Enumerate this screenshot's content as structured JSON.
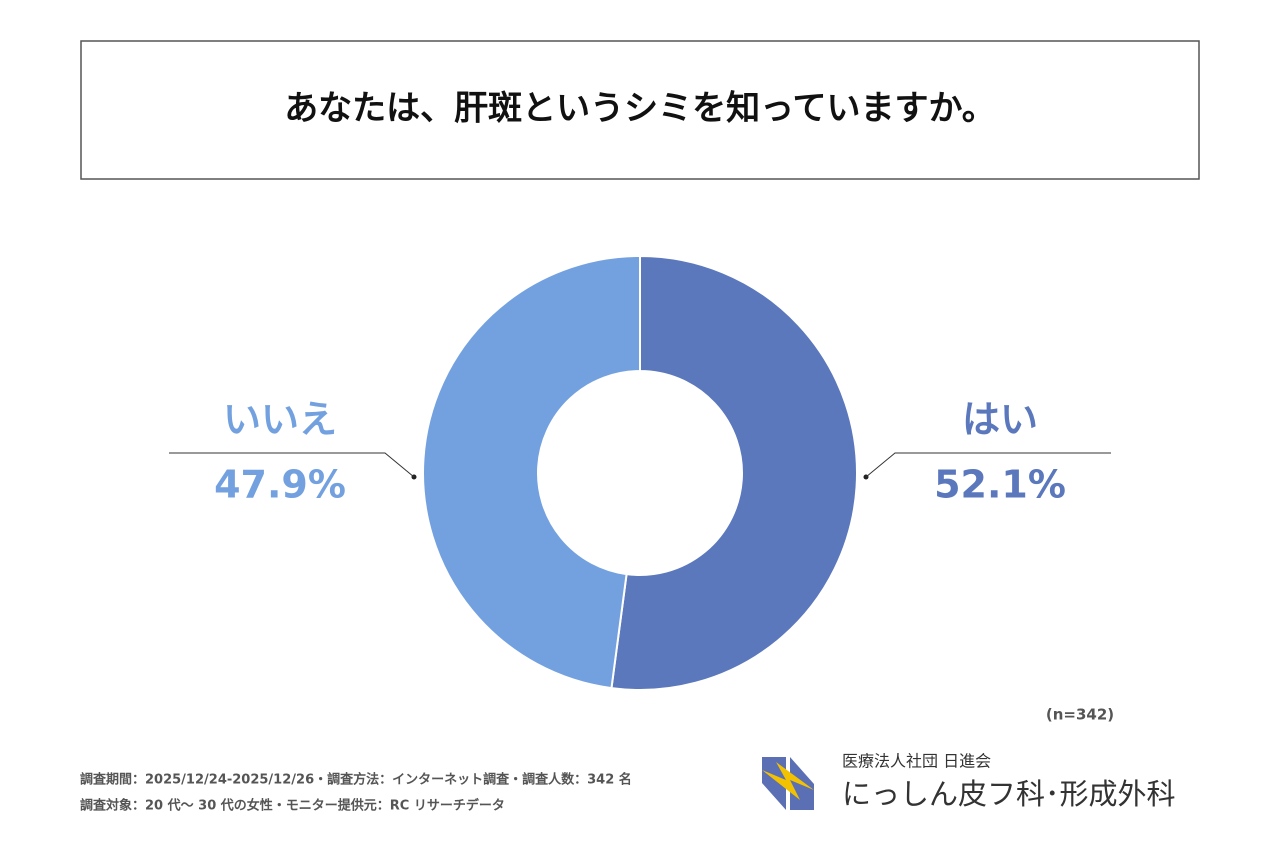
{
  "chart_data": {
    "type": "pie",
    "donut": true,
    "title": "あなたは、肝斑というシミを知っていますか。",
    "categories": [
      "はい",
      "いいえ"
    ],
    "values": [
      52.1,
      47.9
    ],
    "value_labels": [
      "52.1%",
      "47.9%"
    ],
    "colors": [
      "#5b78bd",
      "#73a1e0"
    ],
    "note": "(n=342)",
    "footnotes": [
      "調査期間：2025/12/24-2025/12/26・調査方法：インターネット調査・調査人数：342 名",
      "調査対象：20 代～ 30 代の女性・モニター提供元：RC リサーチデータ"
    ],
    "brand": [
      "医療法人社団 日進会",
      "にっしん皮フ科･形成外科"
    ]
  }
}
